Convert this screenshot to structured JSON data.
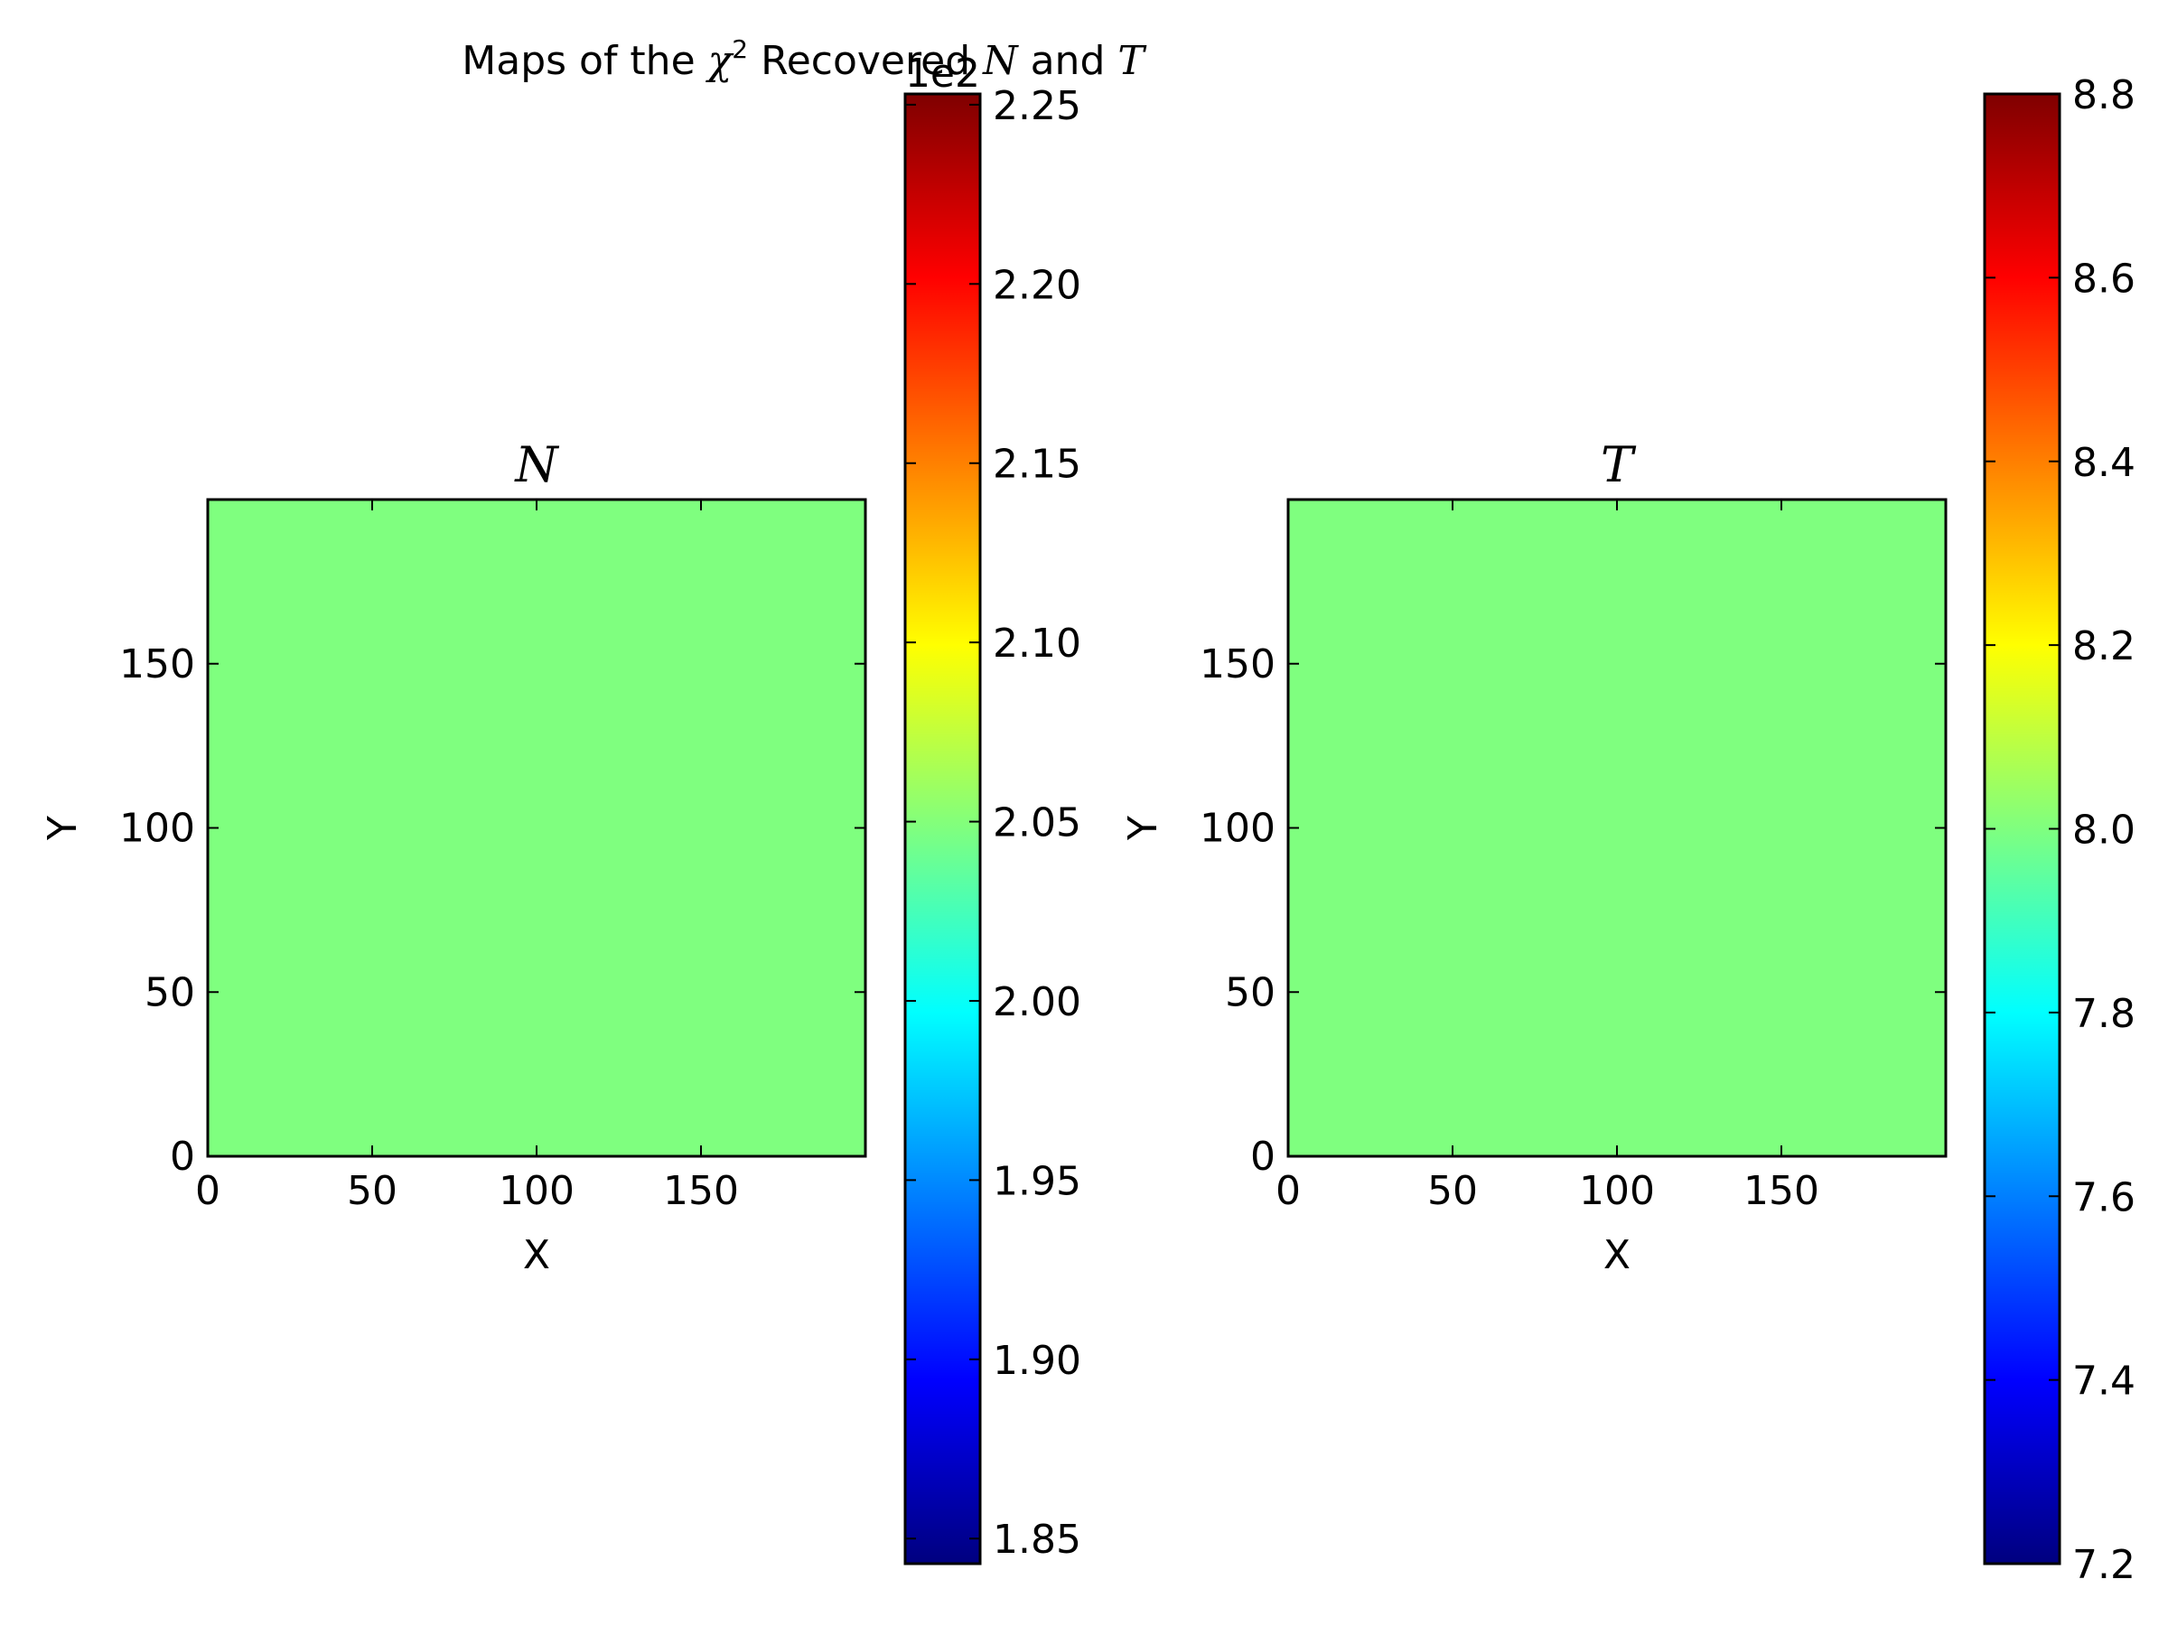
{
  "suptitle": {
    "prefix": "Maps of the ",
    "chi_symbol": "χ",
    "chi_power": "2",
    "middle": " Recovered ",
    "var_n": "N",
    "connector": " and ",
    "var_t": "T"
  },
  "colors": {
    "panel_fill": "#7fff7f",
    "frame": "#000000",
    "background": "#ffffff"
  },
  "colormap": {
    "name": "jet",
    "stops": [
      "#00007f",
      "#0000ff",
      "#007fff",
      "#00ffff",
      "#7fff7f",
      "#ffff00",
      "#ff7f00",
      "#ff0000",
      "#7f0000"
    ]
  },
  "chart_data": [
    {
      "type": "heatmap",
      "title": "N",
      "xlabel": "X",
      "ylabel": "Y",
      "xlim": [
        0,
        200
      ],
      "ylim": [
        0,
        200
      ],
      "xticks": [
        0,
        50,
        100,
        150
      ],
      "yticks": [
        0,
        50,
        100,
        150
      ],
      "xtick_labels": [
        "0",
        "50",
        "100",
        "150"
      ],
      "ytick_labels": [
        "0",
        "50",
        "100",
        "150"
      ],
      "grid": false,
      "uniform_value": 205,
      "colorbar": {
        "range": [
          184.3,
          225.3
        ],
        "ticks": [
          185,
          190,
          195,
          200,
          205,
          210,
          215,
          220,
          225
        ],
        "tick_labels": [
          "1.85",
          "1.90",
          "1.95",
          "2.00",
          "2.05",
          "2.10",
          "2.15",
          "2.20",
          "2.25"
        ],
        "offset_label": "1e2"
      }
    },
    {
      "type": "heatmap",
      "title": "T",
      "xlabel": "X",
      "ylabel": "Y",
      "xlim": [
        0,
        200
      ],
      "ylim": [
        0,
        200
      ],
      "xticks": [
        0,
        50,
        100,
        150
      ],
      "yticks": [
        0,
        50,
        100,
        150
      ],
      "xtick_labels": [
        "0",
        "50",
        "100",
        "150"
      ],
      "ytick_labels": [
        "0",
        "50",
        "100",
        "150"
      ],
      "grid": false,
      "uniform_value": 8.0,
      "colorbar": {
        "range": [
          7.2,
          8.8
        ],
        "ticks": [
          7.2,
          7.4,
          7.6,
          7.8,
          8.0,
          8.2,
          8.4,
          8.6,
          8.8
        ],
        "tick_labels": [
          "7.2",
          "7.4",
          "7.6",
          "7.8",
          "8.0",
          "8.2",
          "8.4",
          "8.6",
          "8.8"
        ],
        "offset_label": ""
      }
    }
  ]
}
